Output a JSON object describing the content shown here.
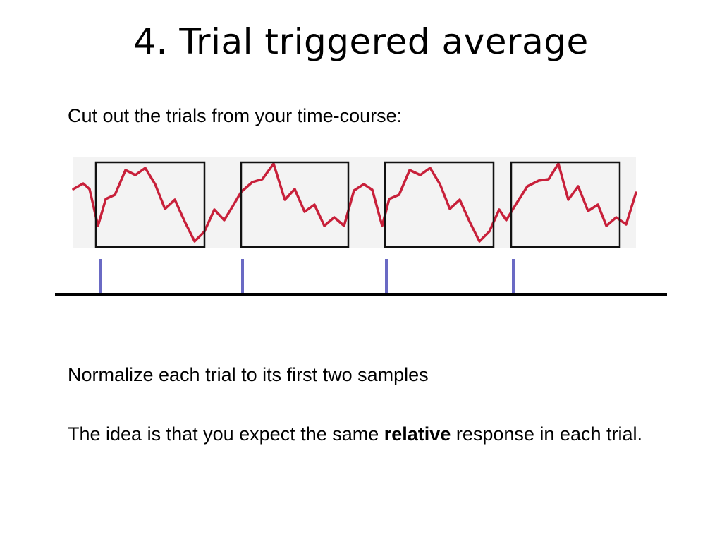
{
  "slide": {
    "title": "4. Trial triggered average",
    "intro": "Cut out the trials from your time-course:",
    "point1": "Normalize each trial to its first two samples",
    "point2_before": "The idea is that you expect the same ",
    "point2_bold": "relative",
    "point2_after": " response in each trial."
  },
  "colors": {
    "signal": "#c8203a",
    "trigger": "#6a6ac4",
    "box": "#111111",
    "trace_background": "#f3f3f3"
  }
}
